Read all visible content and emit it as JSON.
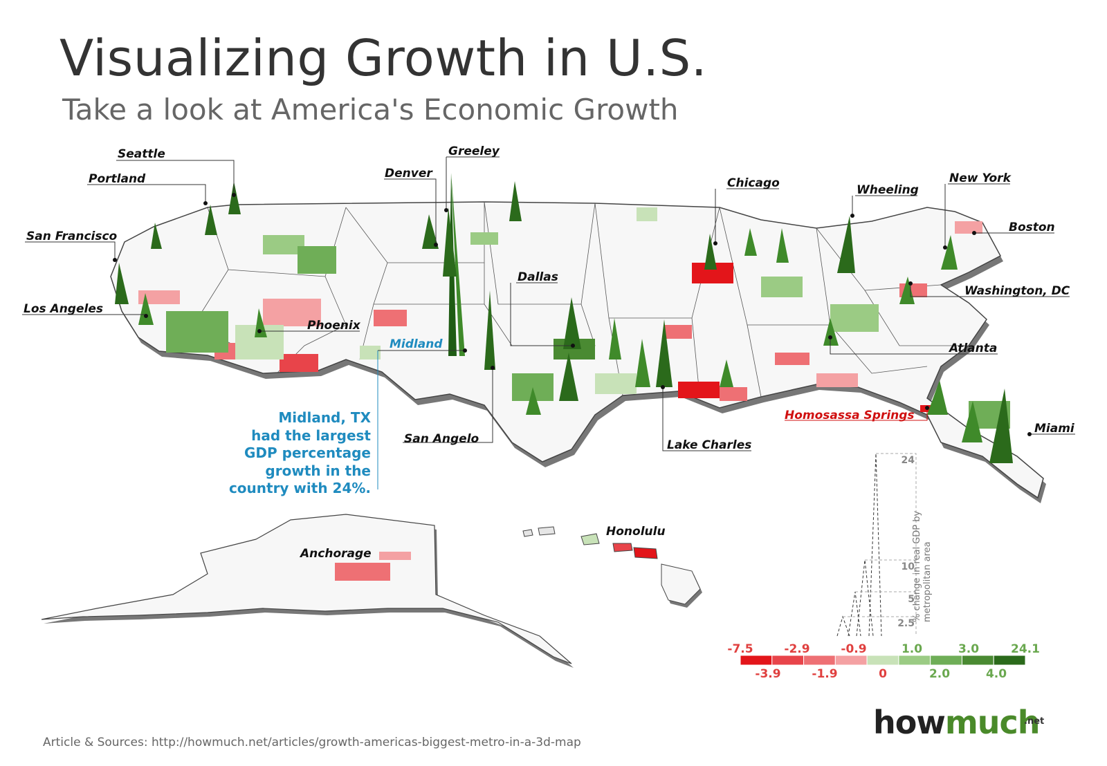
{
  "title": "Visualizing Growth in U.S.",
  "subtitle": "Take a look at America's Economic Growth",
  "cities": [
    {
      "id": "seattle",
      "name": "Seattle"
    },
    {
      "id": "portland",
      "name": "Portland"
    },
    {
      "id": "san-francisco",
      "name": "San Francisco"
    },
    {
      "id": "los-angeles",
      "name": "Los Angeles"
    },
    {
      "id": "phoenix",
      "name": "Phoenix"
    },
    {
      "id": "denver",
      "name": "Denver"
    },
    {
      "id": "greeley",
      "name": "Greeley"
    },
    {
      "id": "dallas",
      "name": "Dallas"
    },
    {
      "id": "midland",
      "name": "Midland"
    },
    {
      "id": "san-angelo",
      "name": "San Angelo"
    },
    {
      "id": "chicago",
      "name": "Chicago"
    },
    {
      "id": "wheeling",
      "name": "Wheeling"
    },
    {
      "id": "new-york",
      "name": "New York"
    },
    {
      "id": "boston",
      "name": "Boston"
    },
    {
      "id": "washington-dc",
      "name": "Washington, DC"
    },
    {
      "id": "atlanta",
      "name": "Atlanta"
    },
    {
      "id": "homosassa-springs",
      "name": "Homosassa Springs"
    },
    {
      "id": "miami",
      "name": "Miami"
    },
    {
      "id": "lake-charles",
      "name": "Lake Charles"
    },
    {
      "id": "anchorage",
      "name": "Anchorage"
    },
    {
      "id": "honolulu",
      "name": "Honolulu"
    }
  ],
  "callout": {
    "lines": [
      "Midland, TX",
      "had the largest",
      "GDP percentage",
      "growth in the",
      "country with 24%."
    ]
  },
  "legend": {
    "top_labels": [
      "-7.5",
      "-2.9",
      "-0.9",
      "1.0",
      "3.0",
      "24.1"
    ],
    "bottom_labels": [
      "-3.9",
      "-1.9",
      "0",
      "2.0",
      "4.0"
    ],
    "colors": [
      "#e3151a",
      "#e8444a",
      "#ee7074",
      "#f4a1a3",
      "#c8e2b8",
      "#9bcb84",
      "#6fae57",
      "#4a8a32",
      "#2b6a1b"
    ],
    "negative_text_color": "#e0403f",
    "positive_text_color": "#6aa84f"
  },
  "height_scale": {
    "ticks": [
      "24",
      "10",
      "5",
      "2.5"
    ],
    "axis_label": "% change in real GDP by metropolitan area"
  },
  "source": "Article & Sources: http://howmuch.net/articles/growth-americas-biggest-metro-in-a-3d-map",
  "logo": {
    "how": "how",
    "much": "much",
    "net": ".net"
  }
}
